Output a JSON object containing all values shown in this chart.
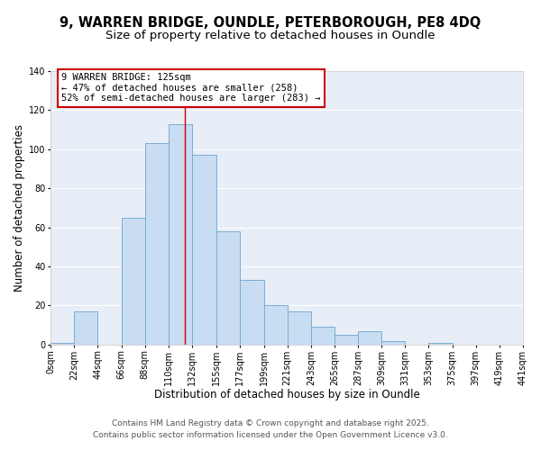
{
  "title_line1": "9, WARREN BRIDGE, OUNDLE, PETERBOROUGH, PE8 4DQ",
  "title_line2": "Size of property relative to detached houses in Oundle",
  "xlabel": "Distribution of detached houses by size in Oundle",
  "ylabel": "Number of detached properties",
  "bin_edges": [
    0,
    22,
    44,
    66,
    88,
    110,
    132,
    155,
    177,
    199,
    221,
    243,
    265,
    287,
    309,
    331,
    353,
    375,
    397,
    419,
    441
  ],
  "bin_counts": [
    1,
    17,
    0,
    65,
    103,
    113,
    97,
    58,
    33,
    20,
    17,
    9,
    5,
    7,
    2,
    0,
    1,
    0,
    0,
    0
  ],
  "bar_color": "#c8ddf2",
  "bar_edge_color": "#7aadd4",
  "marker_x": 125,
  "marker_line_color": "#cc0000",
  "annotation_text": "9 WARREN BRIDGE: 125sqm\n← 47% of detached houses are smaller (258)\n52% of semi-detached houses are larger (283) →",
  "annotation_box_color": "#ffffff",
  "annotation_border_color": "#cc0000",
  "ylim": [
    0,
    140
  ],
  "xlim": [
    0,
    441
  ],
  "tick_labels": [
    "0sqm",
    "22sqm",
    "44sqm",
    "66sqm",
    "88sqm",
    "110sqm",
    "132sqm",
    "155sqm",
    "177sqm",
    "199sqm",
    "221sqm",
    "243sqm",
    "265sqm",
    "287sqm",
    "309sqm",
    "331sqm",
    "353sqm",
    "375sqm",
    "397sqm",
    "419sqm",
    "441sqm"
  ],
  "footer_line1": "Contains HM Land Registry data © Crown copyright and database right 2025.",
  "footer_line2": "Contains public sector information licensed under the Open Government Licence v3.0.",
  "bg_color": "#ffffff",
  "plot_bg_color": "#e8eef7",
  "grid_color": "#ffffff",
  "title_fontsize": 10.5,
  "subtitle_fontsize": 9.5,
  "axis_label_fontsize": 8.5,
  "tick_fontsize": 7,
  "footer_fontsize": 6.5,
  "annotation_fontsize": 7.5
}
